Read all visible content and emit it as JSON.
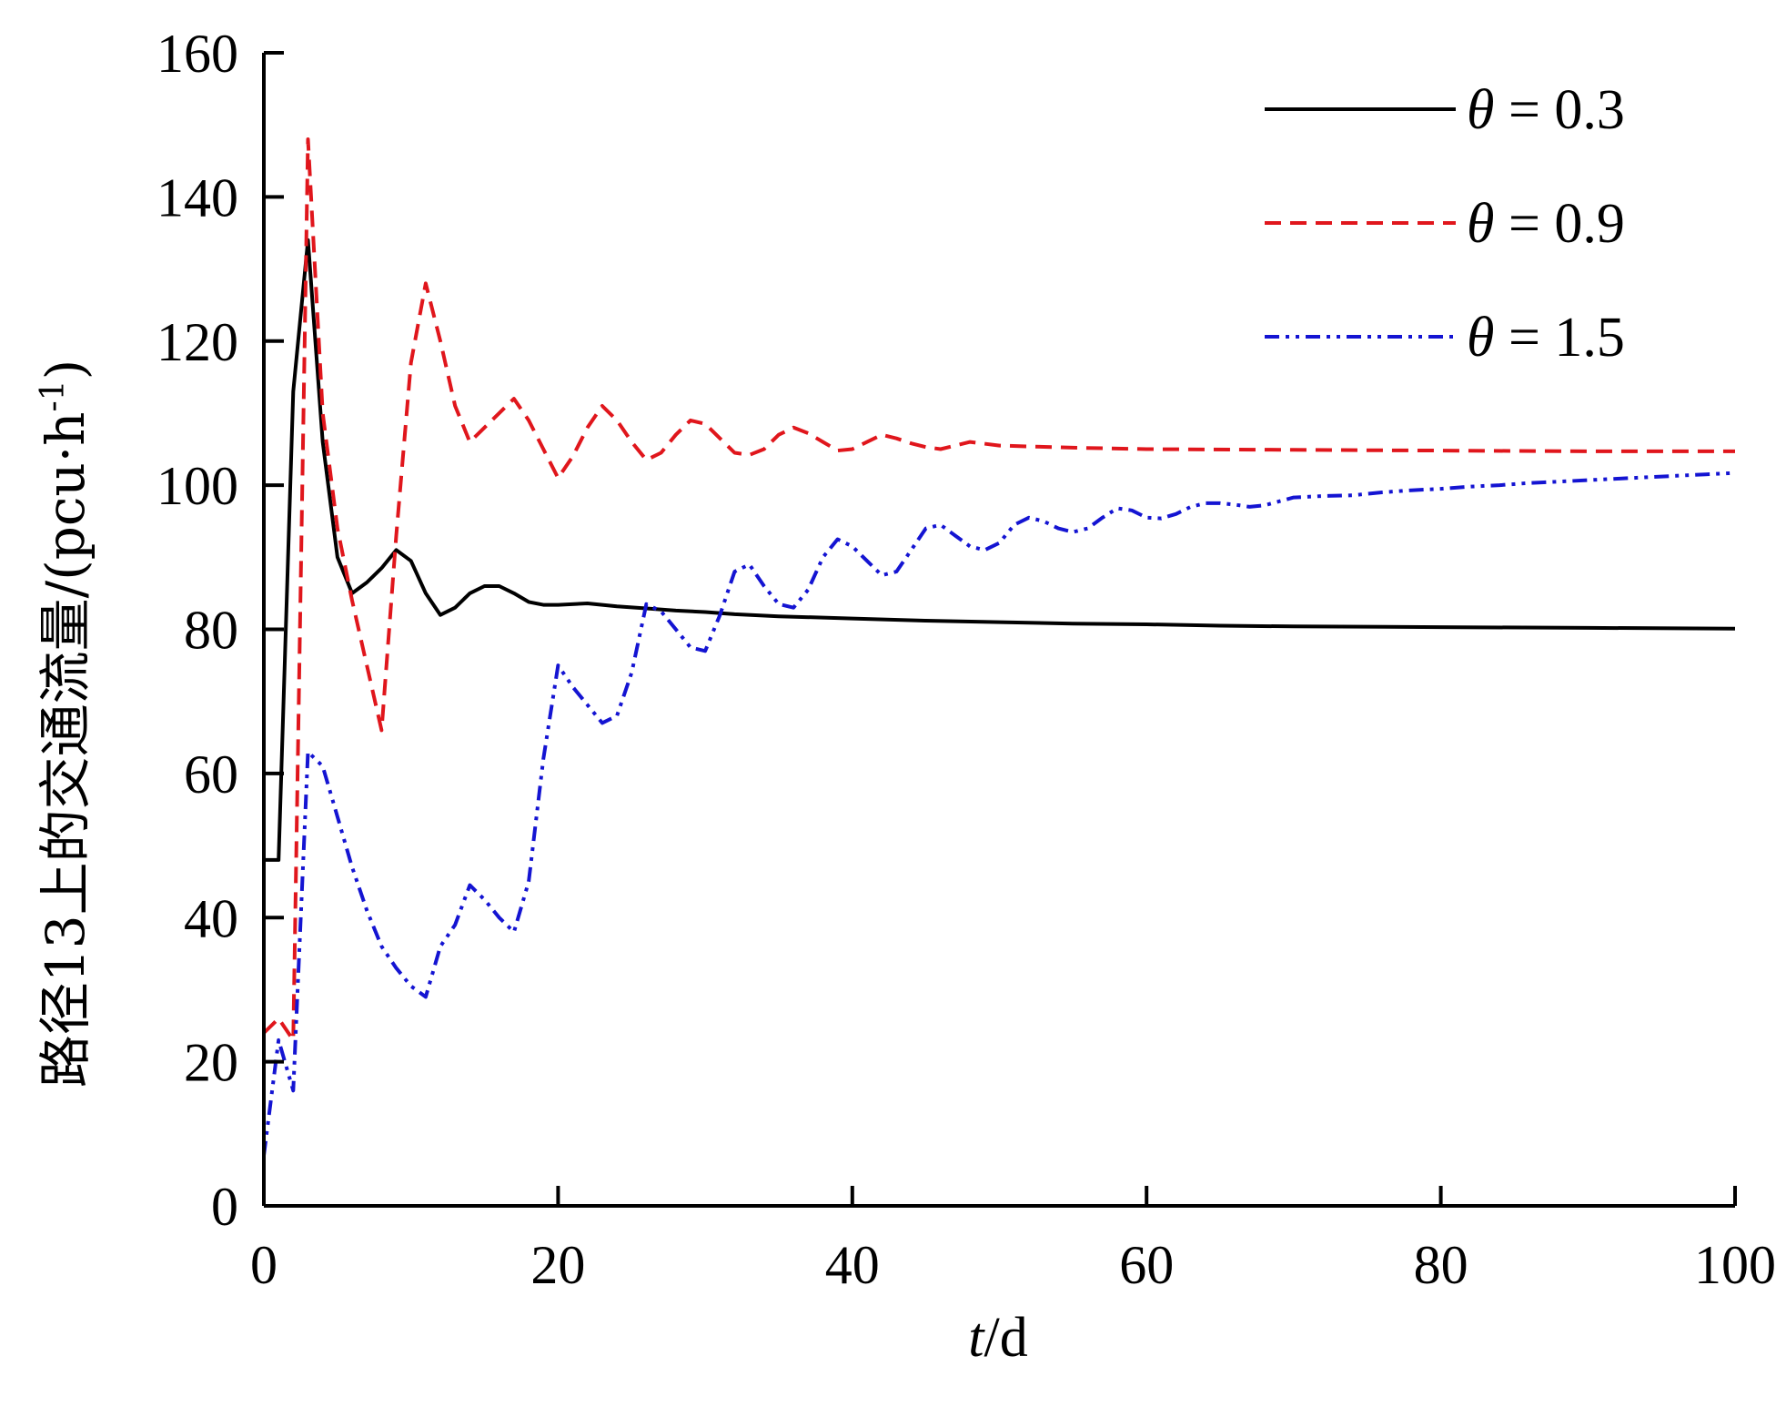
{
  "chart_data": {
    "type": "line",
    "title": "",
    "xlabel_italic": "t",
    "xlabel_unit": "/d",
    "ylabel": "路径13上的交通流量/(pcu·h",
    "ylabel_sup": "-1",
    "ylabel_close": ")",
    "xlim": [
      0,
      100
    ],
    "ylim": [
      0,
      160
    ],
    "xticks": [
      0,
      20,
      40,
      60,
      80,
      100
    ],
    "yticks": [
      0,
      20,
      40,
      60,
      80,
      100,
      120,
      140,
      160
    ],
    "grid": false,
    "legend_position": "top-right",
    "series": [
      {
        "name": "θ = 0.3",
        "symbol": "θ",
        "value_label": " = 0.3",
        "color": "#000000",
        "dash": "solid",
        "x": [
          0,
          1,
          2,
          3,
          4,
          5,
          6,
          7,
          8,
          9,
          10,
          11,
          12,
          13,
          14,
          15,
          16,
          17,
          18,
          19,
          20,
          22,
          24,
          26,
          28,
          30,
          32,
          35,
          40,
          45,
          50,
          55,
          60,
          65,
          70,
          80,
          90,
          100
        ],
        "y": [
          48,
          48,
          113,
          134,
          106,
          90,
          85,
          86.5,
          88.5,
          91,
          89.5,
          85,
          82,
          83,
          85,
          86,
          86,
          85,
          83.8,
          83.4,
          83.4,
          83.6,
          83.2,
          82.9,
          82.6,
          82.4,
          82.1,
          81.8,
          81.5,
          81.2,
          81,
          80.8,
          80.7,
          80.5,
          80.4,
          80.3,
          80.2,
          80.1
        ]
      },
      {
        "name": "θ = 0.9",
        "symbol": "θ",
        "value_label": " = 0.9",
        "color": "#e0161c",
        "dash": "dashed",
        "x": [
          0,
          1,
          2,
          3,
          4,
          5,
          6,
          7,
          8,
          9,
          10,
          11,
          12,
          13,
          14,
          15,
          16,
          17,
          18,
          19,
          20,
          21,
          22,
          23,
          24,
          25,
          26,
          27,
          28,
          29,
          30,
          31,
          32,
          33,
          34,
          35,
          36,
          37,
          38,
          39,
          40,
          41,
          42,
          43,
          44,
          45,
          46,
          47,
          48,
          50,
          55,
          60,
          70,
          80,
          90,
          100
        ],
        "y": [
          24,
          26,
          23,
          148,
          110,
          94,
          84,
          75,
          66,
          93,
          117,
          128,
          120,
          111,
          106,
          108,
          110,
          112,
          109,
          105,
          101,
          104,
          108,
          111,
          109,
          106,
          103.5,
          104.5,
          107,
          109,
          108.5,
          106.5,
          104.5,
          104.2,
          105,
          107,
          108,
          107.2,
          106,
          104.8,
          105,
          106,
          107,
          106.5,
          105.8,
          105.3,
          105,
          105.5,
          106,
          105.5,
          105.2,
          105.0,
          104.9,
          104.8,
          104.7,
          104.7
        ]
      },
      {
        "name": "θ = 1.5",
        "symbol": "θ",
        "value_label": " = 1.5",
        "color": "#1414d2",
        "dash": "dashdotdot",
        "x": [
          0,
          1,
          2,
          3,
          4,
          5,
          6,
          7,
          8,
          9,
          10,
          11,
          12,
          13,
          14,
          15,
          16,
          17,
          18,
          19,
          20,
          21,
          22,
          23,
          24,
          25,
          26,
          27,
          28,
          29,
          30,
          31,
          32,
          33,
          34,
          35,
          36,
          37,
          38,
          39,
          40,
          41,
          42,
          43,
          44,
          45,
          46,
          47,
          48,
          49,
          50,
          51,
          52,
          53,
          54,
          55,
          56,
          57,
          58,
          59,
          60,
          61,
          62,
          63,
          64,
          65,
          66,
          67,
          68,
          70,
          72,
          74,
          76,
          78,
          80,
          82,
          84,
          86,
          88,
          90,
          92,
          94,
          96,
          98,
          100
        ],
        "y": [
          7,
          23,
          16,
          63,
          61,
          54,
          47,
          41,
          36,
          33,
          30.5,
          29,
          36,
          39,
          44.5,
          42.5,
          40,
          38,
          45,
          62,
          75,
          72,
          69.5,
          67,
          68,
          74,
          83.5,
          82.5,
          80,
          77.5,
          77,
          82,
          88,
          89,
          86,
          83.5,
          83,
          85.5,
          90,
          92.5,
          91.5,
          89.5,
          87.5,
          88,
          91,
          94,
          94.5,
          93,
          91.5,
          91,
          92,
          94.5,
          95.5,
          95,
          94,
          93.5,
          94,
          95.5,
          96.8,
          96.5,
          95.5,
          95.4,
          96,
          97,
          97.5,
          97.5,
          97.3,
          97,
          97.2,
          98.3,
          98.5,
          98.6,
          99,
          99.3,
          99.5,
          99.8,
          100,
          100.3,
          100.5,
          100.7,
          100.9,
          101.1,
          101.3,
          101.5,
          101.7
        ]
      }
    ]
  }
}
